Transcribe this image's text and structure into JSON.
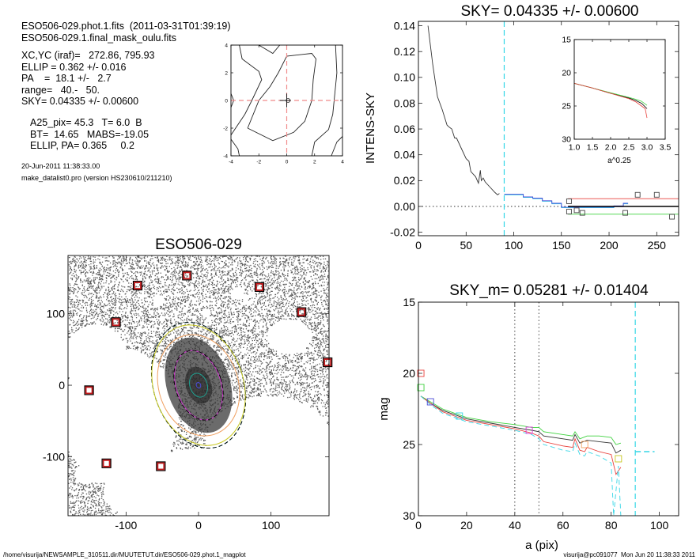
{
  "header": {
    "file_line": "ESO506-029.phot.1.fits  (2011-03-31T01:39:19)",
    "mask_line": "ESO506-029.1.final_mask_oulu.fits",
    "params": [
      "XC,YC (iraf)=   272.86, 795.93",
      "ELLIP = 0.362 +/- 0.016",
      "PA    =  18.1 +/-   2.7",
      "range=   40.-   50.",
      "SKY= 0.04335 +/- 0.00600"
    ],
    "derived": [
      "A25_pix= 45.3   T= 6.0  B",
      "BT=  14.65   MABS=-19.05",
      "ELLIP, PA= 0.365     0.2"
    ],
    "date": "20-Jun-2011 11:38:33.00",
    "program": "make_datalist0.pro (version HS230610/211210)"
  },
  "footer": {
    "path": "/home/visurija/NEWSAMPLE_310511.dir/MUUTETUT.dir/ESO506-029.phot.1_magplot",
    "user": "visurija@pc091077  Mon Jun 20 11:38:33 2011"
  },
  "colors": {
    "red": "#e8413c",
    "green": "#3fd23f",
    "cyan": "#35d6e6",
    "blue": "#4a4ad8",
    "magenta": "#d83ad8",
    "orange": "#f0a060",
    "yellow": "#c8c820",
    "sky_box": "#c0181a",
    "grey": "#555555"
  },
  "chart_data": [
    {
      "id": "center",
      "type": "line",
      "title": "",
      "xlim": [
        -4,
        4
      ],
      "ylim": [
        -4,
        4
      ],
      "xticks": [
        -4,
        -2,
        0,
        2,
        4
      ],
      "yticks": [
        -4,
        -2,
        0,
        2,
        4
      ],
      "contours": [
        [
          [
            -2.8,
            -2
          ],
          [
            -1,
            -2.9
          ],
          [
            0.5,
            -2.3
          ],
          [
            1.3,
            -1.5
          ],
          [
            1.8,
            0
          ],
          [
            1.9,
            1.5
          ],
          [
            2.1,
            3
          ],
          [
            1.8,
            3.4
          ],
          [
            0,
            3.2
          ],
          [
            -0.6,
            2
          ],
          [
            -1.2,
            1
          ],
          [
            -2,
            0
          ],
          [
            -2.8,
            -2
          ]
        ],
        [
          [
            1.8,
            -4
          ],
          [
            2,
            -3
          ],
          [
            3,
            -2.1
          ],
          [
            3.3,
            -1
          ],
          [
            3.5,
            1
          ],
          [
            3.6,
            2
          ],
          [
            3.5,
            4
          ]
        ],
        [
          [
            3.2,
            -4
          ],
          [
            3.6,
            -3
          ],
          [
            4,
            -2.6
          ]
        ],
        [
          [
            -3.4,
            4
          ],
          [
            -3.2,
            3
          ],
          [
            -2,
            2.1
          ],
          [
            -1.8,
            1.5
          ],
          [
            -2.5,
            0
          ],
          [
            -3,
            -1
          ],
          [
            -4,
            -2.5
          ]
        ],
        [
          [
            -4,
            -2.8
          ],
          [
            -3.5,
            -3.5
          ],
          [
            -3.4,
            -4
          ]
        ],
        [
          [
            -2,
            4
          ],
          [
            -1,
            3.4
          ],
          [
            -0.5,
            4
          ]
        ],
        [
          [
            -4,
            -0.5
          ],
          [
            -3.8,
            0
          ],
          [
            -4,
            0.5
          ]
        ]
      ]
    },
    {
      "id": "image",
      "type": "scatter",
      "title": "ESO506-029",
      "xlim": [
        -180,
        180
      ],
      "ylim": [
        -182,
        181
      ],
      "xticks": [
        -100,
        0,
        100
      ],
      "yticks": [
        -100,
        0,
        100
      ],
      "sky_boxes": [
        [
          -151,
          -7
        ],
        [
          -84,
          139
        ],
        [
          -16,
          153
        ],
        [
          -114,
          88
        ],
        [
          84,
          137
        ],
        [
          142,
          102
        ],
        [
          178,
          32
        ],
        [
          -127,
          -109
        ],
        [
          -52,
          -113
        ]
      ],
      "ellipses": [
        {
          "a": 90,
          "b": 62,
          "pa": 18,
          "color": "cyan",
          "dash": true
        },
        {
          "a": 90,
          "b": 62,
          "pa": 18,
          "color": "black",
          "dash": true
        },
        {
          "a": 86,
          "b": 62,
          "pa": 18,
          "color": "yellow",
          "dash": false
        },
        {
          "a": 72,
          "b": 55,
          "pa": 18,
          "color": "orange",
          "dash": false
        },
        {
          "a": 50,
          "b": 31,
          "pa": 18,
          "color": "magenta",
          "dash": false
        },
        {
          "a": 50,
          "b": 32,
          "pa": 18,
          "color": "black",
          "dash": true
        },
        {
          "a": 17,
          "b": 12,
          "pa": 18,
          "color": "#20a090",
          "dash": false
        },
        {
          "a": 4,
          "b": 3,
          "pa": 18,
          "color": "blue",
          "dash": false
        }
      ]
    },
    {
      "id": "sky",
      "type": "line",
      "title": "SKY= 0.04335 +/- 0.00600",
      "xlabel": "",
      "ylabel": "INTENS-SKY",
      "xlim": [
        0,
        273
      ],
      "ylim": [
        -0.0227,
        0.1434
      ],
      "xticks": [
        0,
        50,
        100,
        150,
        200,
        250
      ],
      "yticks": [
        -0.02,
        0.0,
        0.02,
        0.04,
        0.06,
        0.08,
        0.1,
        0.12,
        0.14
      ],
      "profile": [
        [
          10,
          0.14
        ],
        [
          15,
          0.11
        ],
        [
          20,
          0.085
        ],
        [
          25,
          0.075
        ],
        [
          30,
          0.063
        ],
        [
          33,
          0.061
        ],
        [
          35,
          0.06
        ],
        [
          38,
          0.053
        ],
        [
          40,
          0.053
        ],
        [
          45,
          0.045
        ],
        [
          50,
          0.037
        ],
        [
          53,
          0.035
        ],
        [
          55,
          0.027
        ],
        [
          60,
          0.023
        ],
        [
          63,
          0.018
        ],
        [
          65,
          0.028
        ],
        [
          66,
          0.02
        ],
        [
          68,
          0.022
        ],
        [
          70,
          0.019
        ],
        [
          75,
          0.015
        ],
        [
          80,
          0.011
        ],
        [
          83,
          0.009
        ],
        [
          85,
          0.01
        ]
      ],
      "sky_fit": [
        [
          90,
          0.009
        ],
        [
          100,
          0.009
        ],
        [
          110,
          0.007
        ],
        [
          120,
          0.006
        ],
        [
          130,
          0.004
        ],
        [
          140,
          0.002
        ],
        [
          150,
          -0.001
        ],
        [
          170,
          -0.001
        ],
        [
          190,
          -0.001
        ],
        [
          205,
          0
        ],
        [
          215,
          0.002
        ],
        [
          220,
          0.002
        ]
      ],
      "sky_region_start": 90,
      "levels": {
        "upper": 0.006,
        "mean": 0,
        "lower": -0.006,
        "from": 157
      },
      "boxes": [
        [
          158,
          0.004
        ],
        [
          158,
          -0.004
        ],
        [
          166,
          -0.003
        ],
        [
          172,
          -0.005
        ],
        [
          217,
          -0.005
        ],
        [
          230,
          0.009
        ],
        [
          250,
          0.009
        ],
        [
          266,
          -0.008
        ]
      ]
    },
    {
      "id": "inset",
      "type": "line",
      "xlabel": "a^0.25",
      "xlim": [
        1.0,
        3.5
      ],
      "ylim": [
        30,
        15
      ],
      "xticks": [
        "1.0",
        "1.5",
        "2.0",
        "2.5",
        "3.0",
        "3.5"
      ],
      "yticks": [
        15,
        20,
        25,
        30
      ],
      "series": [
        {
          "name": "black",
          "values": [
            [
              1.0,
              21.6
            ],
            [
              1.5,
              22.3
            ],
            [
              2.0,
              23.1
            ],
            [
              2.5,
              23.8
            ],
            [
              2.7,
              24.2
            ],
            [
              2.85,
              24.6
            ],
            [
              3.0,
              25.4
            ]
          ]
        },
        {
          "name": "green",
          "values": [
            [
              1.0,
              21.6
            ],
            [
              1.5,
              22.3
            ],
            [
              2.0,
              23.0
            ],
            [
              2.5,
              23.7
            ],
            [
              2.7,
              24.0
            ],
            [
              2.85,
              24.3
            ],
            [
              3.0,
              24.9
            ]
          ]
        },
        {
          "name": "red",
          "values": [
            [
              1.0,
              21.6
            ],
            [
              1.5,
              22.3
            ],
            [
              2.0,
              23.1
            ],
            [
              2.5,
              23.9
            ],
            [
              2.7,
              24.4
            ],
            [
              2.85,
              25.0
            ],
            [
              2.95,
              25.4
            ],
            [
              3.0,
              26.8
            ]
          ]
        }
      ]
    },
    {
      "id": "mag",
      "type": "line",
      "title": "SKY_m=  0.05281 +/- 0.01404",
      "xlabel": "a (pix)",
      "ylabel": "mag",
      "xlim": [
        0,
        108
      ],
      "ylim": [
        30,
        15
      ],
      "xticks": [
        0,
        20,
        40,
        60,
        80,
        100
      ],
      "yticks": [
        15,
        20,
        25,
        30
      ],
      "range_lines": [
        40,
        50
      ],
      "sky_radius": 90,
      "sky_mag": 25.5,
      "series": [
        {
          "name": "black",
          "values": [
            [
              1,
              21.6
            ],
            [
              5,
              22.1
            ],
            [
              10,
              22.6
            ],
            [
              15,
              22.9
            ],
            [
              20,
              23.2
            ],
            [
              30,
              23.5
            ],
            [
              40,
              23.8
            ],
            [
              47,
              24.0
            ],
            [
              50,
              24.1
            ],
            [
              52,
              24.4
            ],
            [
              60,
              24.6
            ],
            [
              64,
              24.7
            ],
            [
              65,
              24.3
            ],
            [
              67,
              24.9
            ],
            [
              70,
              24.7
            ],
            [
              75,
              24.8
            ],
            [
              80,
              24.9
            ],
            [
              82,
              25.6
            ],
            [
              84,
              25.4
            ]
          ]
        },
        {
          "name": "green",
          "values": [
            [
              1,
              21.6
            ],
            [
              5,
              22.0
            ],
            [
              10,
              22.5
            ],
            [
              15,
              22.8
            ],
            [
              20,
              23.1
            ],
            [
              30,
              23.4
            ],
            [
              40,
              23.6
            ],
            [
              47,
              23.8
            ],
            [
              50,
              23.8
            ],
            [
              52,
              24.1
            ],
            [
              60,
              24.3
            ],
            [
              64,
              24.4
            ],
            [
              65,
              24.1
            ],
            [
              67,
              24.6
            ],
            [
              70,
              24.4
            ],
            [
              75,
              24.4
            ],
            [
              80,
              24.5
            ],
            [
              82,
              25.0
            ],
            [
              84,
              24.9
            ]
          ]
        },
        {
          "name": "red",
          "values": [
            [
              1,
              21.6
            ],
            [
              5,
              22.1
            ],
            [
              10,
              22.7
            ],
            [
              15,
              23.0
            ],
            [
              20,
              23.3
            ],
            [
              30,
              23.6
            ],
            [
              40,
              23.9
            ],
            [
              47,
              24.2
            ],
            [
              50,
              24.4
            ],
            [
              52,
              24.8
            ],
            [
              60,
              25.1
            ],
            [
              64,
              25.2
            ],
            [
              65,
              24.6
            ],
            [
              67,
              25.4
            ],
            [
              69,
              25.5
            ],
            [
              70,
              25.2
            ],
            [
              75,
              25.5
            ],
            [
              80,
              25.7
            ],
            [
              82,
              27.1
            ],
            [
              84,
              26.6
            ]
          ]
        },
        {
          "name": "cyan",
          "values": [
            [
              1,
              21.6
            ],
            [
              5,
              22.2
            ],
            [
              10,
              22.8
            ],
            [
              15,
              23.1
            ],
            [
              20,
              23.4
            ],
            [
              30,
              23.7
            ],
            [
              40,
              24.0
            ],
            [
              47,
              24.3
            ],
            [
              50,
              24.6
            ],
            [
              52,
              25.0
            ],
            [
              60,
              25.4
            ],
            [
              64,
              25.5
            ],
            [
              65,
              24.9
            ],
            [
              67,
              25.7
            ],
            [
              69,
              25.8
            ],
            [
              70,
              25.5
            ],
            [
              75,
              25.8
            ],
            [
              80,
              26.3
            ],
            [
              81,
              30
            ],
            [
              83,
              26.5
            ],
            [
              84,
              30
            ]
          ],
          "dash": true
        }
      ],
      "boxes": [
        [
          1,
          20,
          "red"
        ],
        [
          1,
          21,
          "green"
        ],
        [
          5,
          22,
          "blue"
        ],
        [
          17,
          23,
          "cyan"
        ],
        [
          46,
          24,
          "magenta"
        ],
        [
          69,
          25,
          "orange"
        ],
        [
          83,
          26,
          "yellow"
        ]
      ]
    }
  ]
}
